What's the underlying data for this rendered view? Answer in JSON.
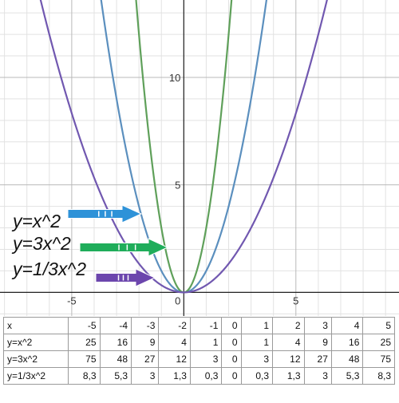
{
  "chart_data": {
    "type": "line",
    "title": "",
    "xlabel": "",
    "ylabel": "",
    "xlim": [
      -8.2,
      9.6
    ],
    "ylim": [
      -1.1,
      13.6
    ],
    "grid": true,
    "x_ticks": [
      "-5",
      "0",
      "5"
    ],
    "y_ticks": [
      "5",
      "10"
    ],
    "series": [
      {
        "formula": "x^2",
        "k": 1,
        "color": "#5b8fbe"
      },
      {
        "formula": "3x^2",
        "k": 3,
        "color": "#5fa05a"
      },
      {
        "formula": "1/3x^2",
        "k": 0.3333,
        "color": "#7158b0"
      }
    ],
    "annotations": [
      {
        "text": "y=x^2",
        "arrow_color": "#2e92d8",
        "points_to": "x^2"
      },
      {
        "text": "y=3x^2",
        "arrow_color": "#1fad5a",
        "points_to": "3x^2"
      },
      {
        "text": "y=1/3x^2",
        "arrow_color": "#6c46ad",
        "points_to": "1/3x^2"
      }
    ]
  },
  "table": {
    "rows": [
      [
        "x",
        "-5",
        "-4",
        "-3",
        "-2",
        "-1",
        "0",
        "1",
        "2",
        "3",
        "4",
        "5"
      ],
      [
        "y=x^2",
        "25",
        "16",
        "9",
        "4",
        "1",
        "0",
        "1",
        "4",
        "9",
        "16",
        "25"
      ],
      [
        "y=3x^2",
        "75",
        "48",
        "27",
        "12",
        "3",
        "0",
        "3",
        "12",
        "27",
        "48",
        "75"
      ],
      [
        "y=1/3x^2",
        "8,3",
        "5,3",
        "3",
        "1,3",
        "0,3",
        "0",
        "0,3",
        "1,3",
        "3",
        "5,3",
        "8,3"
      ]
    ]
  }
}
